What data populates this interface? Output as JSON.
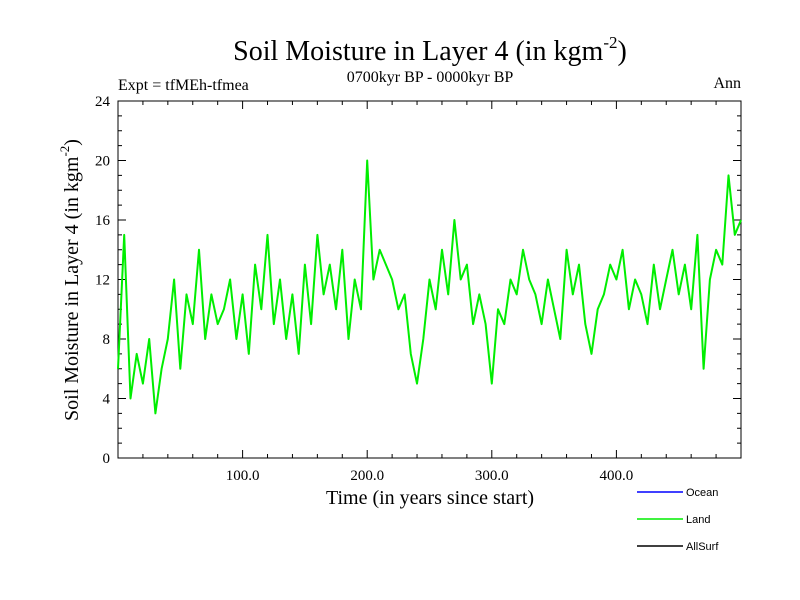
{
  "chart_data": {
    "type": "line",
    "title": "Soil Moisture in Layer 4 (in kgm",
    "title_superscript": "-2",
    "title_close": ")",
    "subtitle": "0700kyr BP - 0000kyr BP",
    "top_left_label": "Expt = tfMEh-tfmea",
    "top_right_label": "Ann",
    "xlabel": "Time (in years since start)",
    "ylabel": "Soil Moisture in Layer 4 (in kgm",
    "ylabel_superscript": "-2",
    "ylabel_close": ")",
    "xlim": [
      0,
      500
    ],
    "ylim": [
      0,
      24
    ],
    "x_ticks": [
      100,
      200,
      300,
      400
    ],
    "x_tick_labels": [
      "100.0",
      "200.0",
      "300.0",
      "400.0"
    ],
    "y_ticks": [
      0,
      4,
      8,
      12,
      16,
      20,
      24
    ],
    "y_tick_labels": [
      "0",
      "4",
      "8",
      "12",
      "16",
      "20",
      "24"
    ],
    "legend": [
      {
        "name": "Ocean",
        "color": "#0000ff"
      },
      {
        "name": "Land",
        "color": "#00ee00"
      },
      {
        "name": "AllSurf",
        "color": "#000000"
      }
    ],
    "series": [
      {
        "name": "Land",
        "color": "#00ee00",
        "x": [
          0,
          5,
          10,
          15,
          20,
          25,
          30,
          35,
          40,
          45,
          50,
          55,
          60,
          65,
          70,
          75,
          80,
          85,
          90,
          95,
          100,
          105,
          110,
          115,
          120,
          125,
          130,
          135,
          140,
          145,
          150,
          155,
          160,
          165,
          170,
          175,
          180,
          185,
          190,
          195,
          200,
          205,
          210,
          215,
          220,
          225,
          230,
          235,
          240,
          245,
          250,
          255,
          260,
          265,
          270,
          275,
          280,
          285,
          290,
          295,
          300,
          305,
          310,
          315,
          320,
          325,
          330,
          335,
          340,
          345,
          350,
          355,
          360,
          365,
          370,
          375,
          380,
          385,
          390,
          395,
          400,
          405,
          410,
          415,
          420,
          425,
          430,
          435,
          440,
          445,
          450,
          455,
          460,
          465,
          470,
          475,
          480,
          485,
          490,
          495,
          500
        ],
        "values": [
          6,
          15,
          4,
          7,
          5,
          8,
          3,
          6,
          8,
          12,
          6,
          11,
          9,
          14,
          8,
          11,
          9,
          10,
          12,
          8,
          11,
          7,
          13,
          10,
          15,
          9,
          12,
          8,
          11,
          7,
          13,
          9,
          15,
          11,
          13,
          10,
          14,
          8,
          12,
          10,
          20,
          12,
          14,
          13,
          12,
          10,
          11,
          7,
          5,
          8,
          12,
          10,
          14,
          11,
          16,
          12,
          13,
          9,
          11,
          9,
          5,
          10,
          9,
          12,
          11,
          14,
          12,
          11,
          9,
          12,
          10,
          8,
          14,
          11,
          13,
          9,
          7,
          10,
          11,
          13,
          12,
          14,
          10,
          12,
          11,
          9,
          13,
          10,
          12,
          14,
          11,
          13,
          10,
          15,
          6,
          12,
          14,
          13,
          19,
          15,
          16
        ]
      }
    ]
  }
}
